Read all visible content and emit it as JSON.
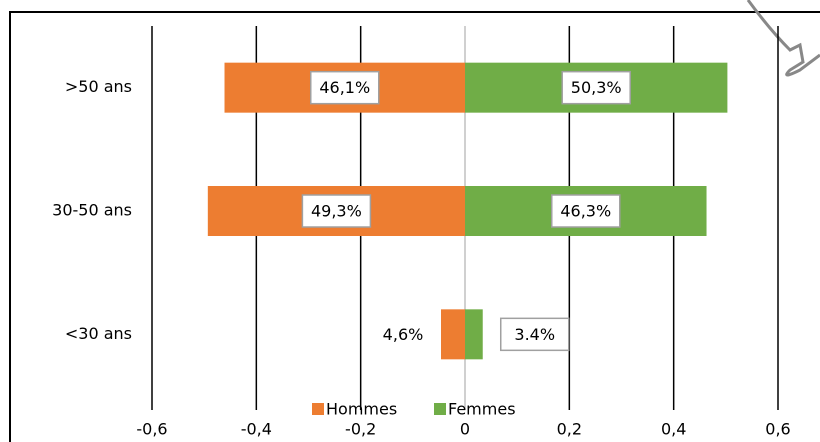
{
  "chart_data": {
    "type": "bar",
    "orientation": "horizontal",
    "categories": [
      ">50 ans",
      "30-50 ans",
      "<30 ans"
    ],
    "series": [
      {
        "name": "Hommes",
        "color": "#ed7d31",
        "values": [
          -0.461,
          -0.493,
          -0.046
        ],
        "value_labels": [
          "46,1%",
          "49,3%",
          "4,6%"
        ]
      },
      {
        "name": "Femmes",
        "color": "#70ad47",
        "values": [
          0.503,
          0.463,
          0.034
        ],
        "value_labels": [
          "50,3%",
          "46,3%",
          "3.4%"
        ]
      }
    ],
    "xlim": [
      -0.6,
      0.6
    ],
    "xticks": [
      {
        "value": -0.6,
        "label": "-0,6"
      },
      {
        "value": -0.4,
        "label": "-0,4"
      },
      {
        "value": -0.2,
        "label": "-0,2"
      },
      0,
      {
        "value": 0.2,
        "label": "0,2"
      },
      {
        "value": 0.4,
        "label": "0,4"
      },
      {
        "value": 0.6,
        "label": "0,6"
      }
    ],
    "grid": true,
    "legend": "bottom"
  }
}
